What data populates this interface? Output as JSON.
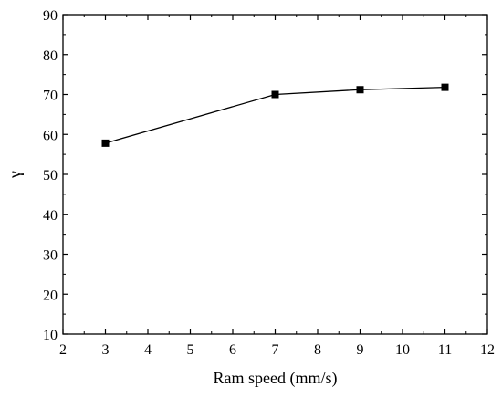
{
  "chart_data": {
    "type": "line",
    "title": "",
    "xlabel": "Ram speed (mm/s)",
    "ylabel": "γ",
    "xlim": [
      2,
      12
    ],
    "ylim": [
      10,
      90
    ],
    "x_ticks": [
      2,
      3,
      4,
      5,
      6,
      7,
      8,
      9,
      10,
      11,
      12
    ],
    "y_ticks": [
      10,
      20,
      30,
      40,
      50,
      60,
      70,
      80,
      90
    ],
    "grid": false,
    "legend": "none",
    "series": [
      {
        "x": [
          3,
          7,
          9,
          11
        ],
        "y": [
          57.8,
          70,
          71.2,
          71.8
        ],
        "marker": "square",
        "color": "#000000"
      }
    ]
  }
}
